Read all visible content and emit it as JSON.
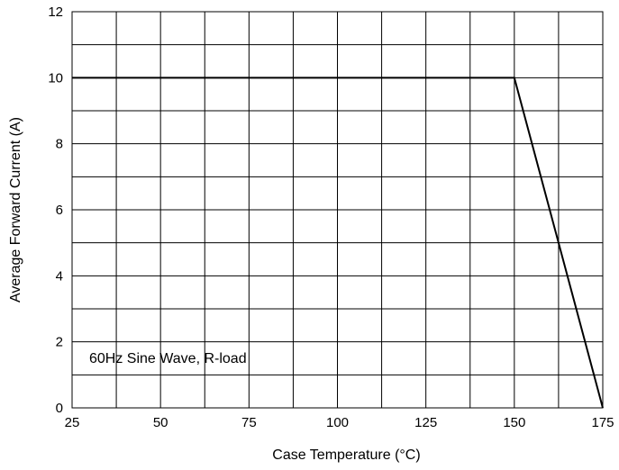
{
  "chart_data": {
    "type": "line",
    "xlabel": "Case Temperature (°C)",
    "ylabel": "Average Forward Current (A)",
    "xlim": [
      25,
      175
    ],
    "ylim": [
      0,
      12
    ],
    "x_ticks": [
      25,
      50,
      75,
      100,
      125,
      150,
      175
    ],
    "x_tick_labels": [
      "25",
      "50",
      "75",
      "100",
      "125",
      "150",
      "175"
    ],
    "y_ticks": [
      0,
      2,
      4,
      6,
      8,
      10,
      12
    ],
    "y_tick_labels": [
      "0",
      "2",
      "4",
      "6",
      "8",
      "10",
      "12"
    ],
    "x_minor_step": 12.5,
    "y_minor_step": 1,
    "grid": true,
    "annotation": "60Hz Sine Wave, R-load",
    "series": [
      {
        "x": [
          25,
          150,
          175
        ],
        "y": [
          10,
          10,
          0
        ],
        "color": "#000000"
      }
    ]
  }
}
